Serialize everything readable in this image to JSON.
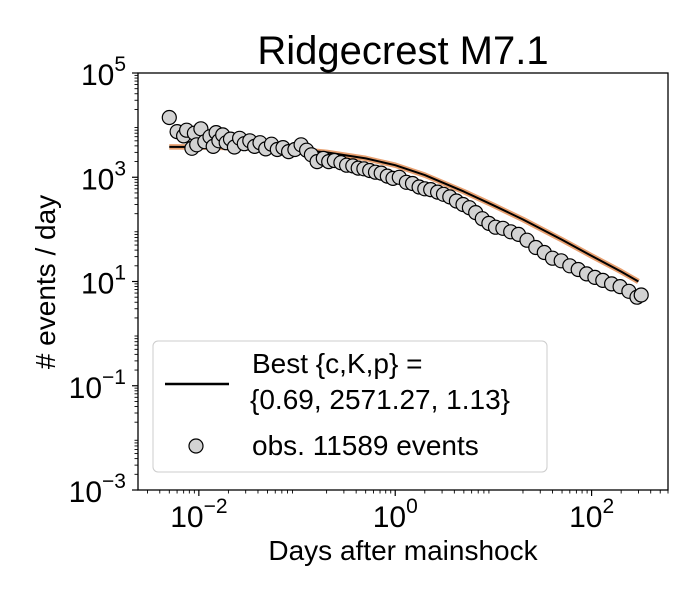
{
  "chart_data": {
    "type": "scatter",
    "title": "Ridgecrest M7.1",
    "xlabel": "Days after mainshock",
    "ylabel": "# events / day",
    "x_scale": "log",
    "y_scale": "log",
    "xlim": [
      0.0024,
      600
    ],
    "ylim": [
      0.001,
      100000
    ],
    "x_ticks": [
      {
        "value": 0.01,
        "base": "10",
        "exp": "−2"
      },
      {
        "value": 1,
        "base": "10",
        "exp": "0"
      },
      {
        "value": 100,
        "base": "10",
        "exp": "2"
      }
    ],
    "y_ticks": [
      {
        "value": 0.001,
        "base": "10",
        "exp": "−3"
      },
      {
        "value": 0.1,
        "base": "10",
        "exp": "−1"
      },
      {
        "value": 10,
        "base": "10",
        "exp": "1"
      },
      {
        "value": 1000,
        "base": "10",
        "exp": "3"
      },
      {
        "value": 100000,
        "base": "10",
        "exp": "5"
      }
    ],
    "grid": false,
    "legend": {
      "position": "lower-left",
      "entries": [
        {
          "kind": "line",
          "lines": [
            "Best {c,K,p} =",
            "{0.69, 2571.27, 1.13}"
          ]
        },
        {
          "kind": "marker",
          "lines": [
            "obs. 11589 events"
          ]
        }
      ]
    },
    "colors": {
      "fit_line": "#000000",
      "fit_halo": "#e8a070",
      "marker_fill": "#d3d3d3",
      "marker_edge": "#000000"
    },
    "series": [
      {
        "kind": "line",
        "params": {
          "c": 0.69,
          "K": 2571.27,
          "p": 1.13
        },
        "x": [
          0.005,
          0.01,
          0.02,
          0.05,
          0.1,
          0.2,
          0.5,
          1,
          2,
          5,
          10,
          20,
          50,
          100,
          200,
          300
        ],
        "y": [
          3820,
          3800,
          3720,
          3600,
          3400,
          3000,
          2300,
          1700,
          1100,
          530,
          290,
          155,
          63,
          31,
          15.5,
          10
        ]
      },
      {
        "kind": "scatter",
        "x": [
          0.005,
          0.006,
          0.007,
          0.0075,
          0.0085,
          0.009,
          0.0095,
          0.0105,
          0.0115,
          0.013,
          0.014,
          0.015,
          0.016,
          0.0175,
          0.019,
          0.021,
          0.023,
          0.026,
          0.029,
          0.033,
          0.037,
          0.042,
          0.048,
          0.055,
          0.063,
          0.072,
          0.082,
          0.095,
          0.11,
          0.125,
          0.14,
          0.16,
          0.185,
          0.21,
          0.24,
          0.28,
          0.32,
          0.37,
          0.42,
          0.48,
          0.55,
          0.63,
          0.72,
          0.83,
          0.95,
          1.1,
          1.3,
          1.5,
          1.75,
          2.0,
          2.3,
          2.7,
          3.1,
          3.6,
          4.2,
          4.9,
          5.7,
          6.6,
          7.7,
          9.0,
          10.5,
          12.5,
          15,
          18,
          22,
          27,
          33,
          40,
          49,
          60,
          73,
          89,
          108,
          130,
          160,
          195,
          240,
          290,
          320
        ],
        "y": [
          14000,
          7500,
          6200,
          8000,
          3600,
          7000,
          4200,
          8500,
          4800,
          6000,
          3900,
          7200,
          5000,
          6500,
          4600,
          5400,
          3800,
          5600,
          4400,
          5000,
          3900,
          4600,
          3500,
          4300,
          3400,
          3700,
          3100,
          3400,
          4200,
          3300,
          2700,
          2000,
          2300,
          2000,
          2100,
          1900,
          1700,
          1650,
          1500,
          1450,
          1350,
          1250,
          1200,
          1050,
          950,
          1000,
          800,
          760,
          650,
          600,
          580,
          520,
          470,
          420,
          350,
          300,
          260,
          210,
          160,
          130,
          110,
          105,
          90,
          80,
          62,
          45,
          36,
          28,
          25,
          20,
          17,
          14,
          12,
          10.5,
          9,
          8,
          6.5,
          5,
          5.5
        ]
      }
    ]
  }
}
